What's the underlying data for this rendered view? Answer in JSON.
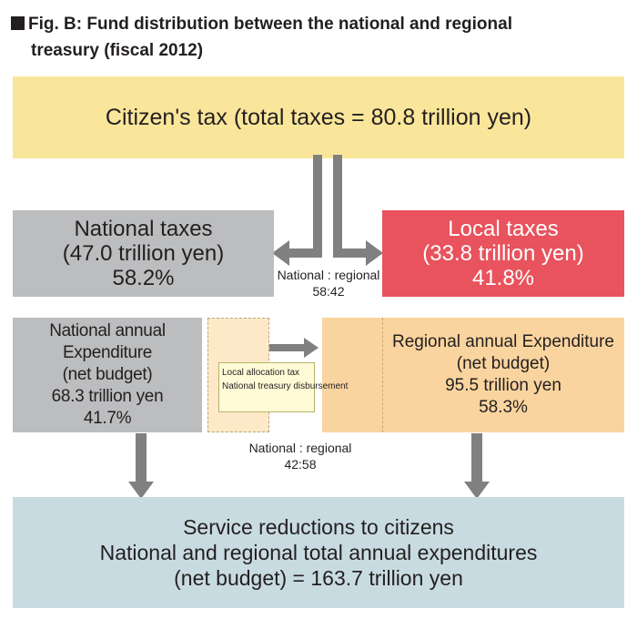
{
  "title": {
    "line1": "Fig. B: Fund distribution between the national and regional",
    "line2": "treasury (fiscal 2012)"
  },
  "citizen_tax": "Citizen's tax (total taxes = 80.8 trillion yen)",
  "national_taxes": {
    "label": "National taxes",
    "amount": "(47.0 trillion yen)",
    "percent": "58.2%"
  },
  "local_taxes": {
    "label": "Local taxes",
    "amount": "(33.8 trillion yen)",
    "percent": "41.8%"
  },
  "tax_ratio": {
    "label": "National : regional",
    "value": "58:42"
  },
  "national_expenditure": {
    "label": "National annual Expenditure",
    "sub": "(net budget)",
    "amount": "68.3 trillion yen",
    "percent": "41.7%"
  },
  "transfer_note": {
    "line1": "Local allocation tax",
    "line2": "National treasury disbursement"
  },
  "regional_expenditure": {
    "label": "Regional annual Expenditure",
    "sub": "(net budget)",
    "amount": "95.5 trillion yen",
    "percent": "58.3%"
  },
  "expenditure_ratio": {
    "label": "National : regional",
    "value": "42:58"
  },
  "service": {
    "line1": "Service reductions to citizens",
    "line2": "National and regional total annual expenditures",
    "line3": "(net budget) = 163.7 trillion yen"
  },
  "colors": {
    "tax_box": "#fae69a",
    "national_box": "#bcbdbf",
    "local_box": "#e8535d",
    "regional_box": "#fad49e",
    "service_box": "#c8dbe1",
    "arrow": "#808080"
  }
}
